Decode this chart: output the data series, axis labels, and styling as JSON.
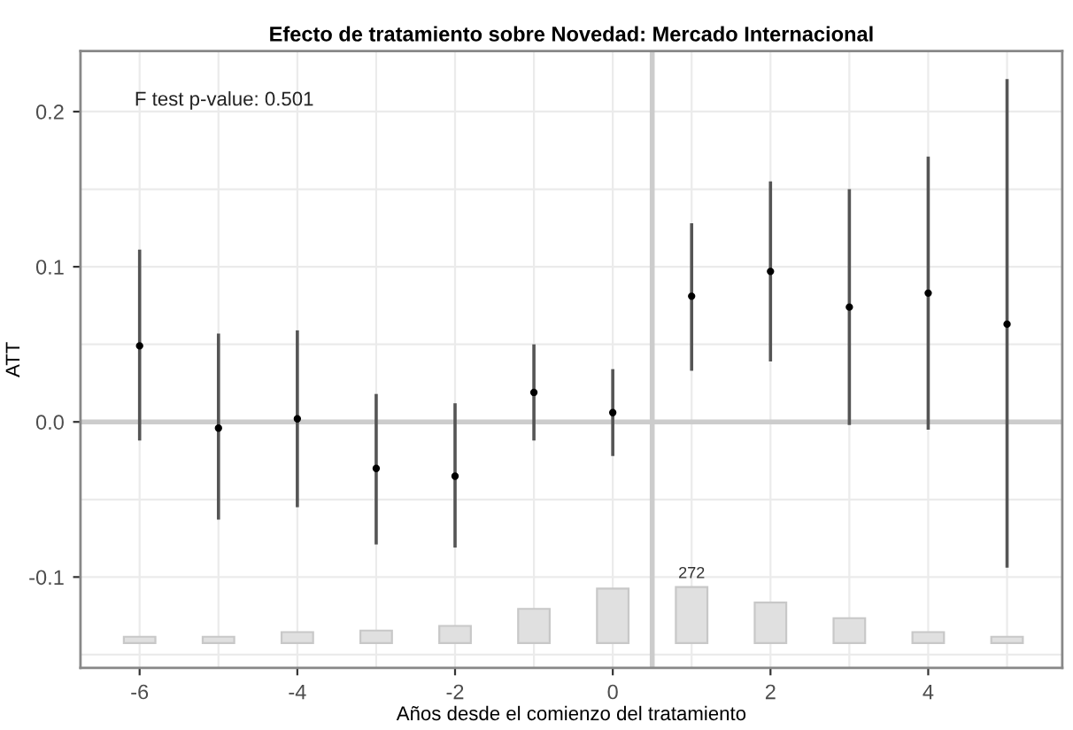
{
  "chart_data": {
    "type": "scatter",
    "title": "Efecto de tratamiento sobre Novedad: Mercado Internacional",
    "xlabel": "Años desde el comienzo del tratamiento",
    "ylabel": "ATT",
    "x": [
      -6,
      -5,
      -4,
      -3,
      -2,
      -1,
      0,
      1,
      2,
      3,
      4,
      5
    ],
    "series": [
      {
        "type": "bar",
        "color": "#e0e0e0",
        "base": [
          -0.1425,
          -0.1425,
          -0.1425,
          -0.1425,
          -0.1425,
          -0.1425,
          -0.1425,
          -0.1425,
          -0.1425,
          -0.1425,
          -0.1425,
          -0.1425
        ],
        "values": [
          0.004,
          0.004,
          0.007,
          0.008,
          0.011,
          0.022,
          0.035,
          0.036,
          0.026,
          0.016,
          0.007,
          0.004
        ]
      },
      {
        "color": "#000000",
        "values": [
          0.049,
          -0.004,
          0.002,
          -0.03,
          -0.035,
          0.019,
          0.006,
          0.081,
          0.097,
          0.074,
          0.083,
          0.063
        ],
        "errors": [
          [
            -0.012,
            0.111
          ],
          [
            -0.063,
            0.057
          ],
          [
            -0.055,
            0.059
          ],
          [
            -0.079,
            0.018
          ],
          [
            -0.081,
            0.012
          ],
          [
            -0.012,
            0.05
          ],
          [
            -0.022,
            0.034
          ],
          [
            0.033,
            0.128
          ],
          [
            0.039,
            0.155
          ],
          [
            -0.002,
            0.15
          ],
          [
            -0.005,
            0.171
          ],
          [
            -0.094,
            0.221
          ]
        ]
      }
    ],
    "annotations": [
      "F test p-value: 0.501",
      {
        "text": "272",
        "x": 1,
        "y": -0.106
      }
    ],
    "ref_lines": [
      {
        "axis": "x",
        "value": 0.5,
        "color": "#cccccc"
      },
      {
        "axis": "y",
        "value": 0,
        "color": "#cccccc"
      }
    ],
    "xlim": [
      -6.75,
      5.7
    ],
    "ylim": [
      -0.1586,
      0.239
    ],
    "xticks": [
      {
        "value": -6,
        "label": "-6"
      },
      {
        "value": -5,
        "label": null
      },
      {
        "value": -4,
        "label": "-4"
      },
      {
        "value": -3,
        "label": null
      },
      {
        "value": -2,
        "label": "-2"
      },
      {
        "value": -1,
        "label": null
      },
      0,
      {
        "value": 1,
        "label": null
      },
      2,
      {
        "value": 3,
        "label": null
      },
      4,
      {
        "value": 5,
        "label": null
      }
    ],
    "yticks": [
      {
        "value": -0.15,
        "label": null
      },
      {
        "value": -0.1,
        "label": "-0.1"
      },
      {
        "value": -0.05,
        "label": null
      },
      {
        "value": 0,
        "label": "0.0"
      },
      {
        "value": 0.05,
        "label": null
      },
      {
        "value": 0.1,
        "label": "0.1"
      },
      {
        "value": 0.15,
        "label": null
      },
      {
        "value": 0.2,
        "label": "0.2"
      }
    ],
    "grid": true,
    "marker": "circle",
    "legend": false
  }
}
